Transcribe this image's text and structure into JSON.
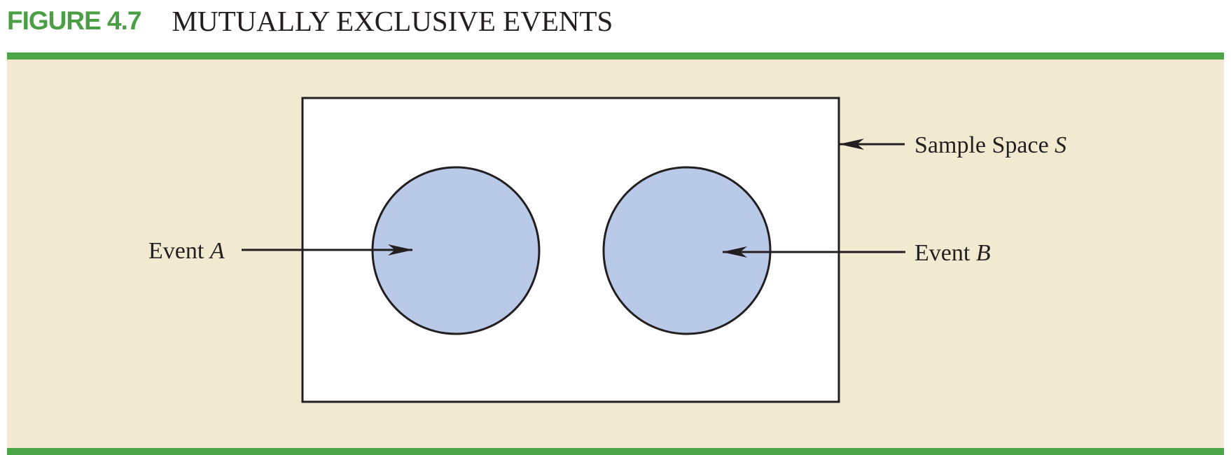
{
  "figure": {
    "label": "FIGURE 4.7",
    "title": "MUTUALLY EXCLUSIVE EVENTS"
  },
  "diagram": {
    "sample_space": {
      "label_prefix": "Sample Space ",
      "label_variable": "S"
    },
    "event_a": {
      "label_prefix": "Event ",
      "label_variable": "A"
    },
    "event_b": {
      "label_prefix": "Event ",
      "label_variable": "B"
    }
  },
  "colors": {
    "accent_green": "#4ca546",
    "label_green": "#4a9e44",
    "panel_background": "#f1ead0",
    "sample_space_fill": "#ffffff",
    "event_fill": "#b9c9e8",
    "stroke": "#231f20"
  }
}
